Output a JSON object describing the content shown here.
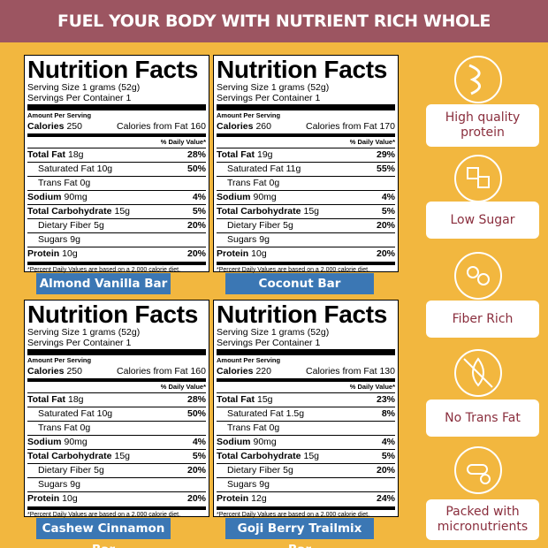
{
  "header": {
    "title": "FUEL YOUR BODY WITH NUTRIENT RICH WHOLE INGREDIENTS"
  },
  "labels": [
    {
      "name": "Almond Vanilla Bar",
      "title": "Nutrition Facts",
      "serving_size": "Serving Size 1 grams (52g)",
      "servings": "Servings Per Container 1",
      "amount_per_serving": "Amount Per Serving",
      "calories_label": "Calories",
      "calories": 250,
      "calories_fat": "Calories from Fat 160",
      "daily_value": "% Daily Value*",
      "rows": [
        {
          "nutrient": "Total Fat",
          "amount": "18g",
          "dv": "28%"
        },
        {
          "nutrient": "Saturated Fat",
          "amount": "10g",
          "dv": "50%"
        },
        {
          "nutrient": "Trans Fat",
          "amount": "0g"
        },
        {
          "nutrient": "Sodium",
          "amount": "90mg",
          "dv": "4%"
        },
        {
          "nutrient": "Total Carbohydrate",
          "amount": "15g",
          "dv": "5%"
        },
        {
          "nutrient": "Dietary Fiber",
          "amount": "5g",
          "dv": "20%"
        },
        {
          "nutrient": "Sugars",
          "amount": "9g"
        },
        {
          "nutrient": "Protein",
          "amount": "10g",
          "dv": "20%"
        }
      ],
      "footnote": "*Percent Daily Values are based on a 2,000 calorie diet."
    },
    {
      "name": "Coconut Bar",
      "title": "Nutrition Facts",
      "serving_size": "Serving Size 1 grams (52g)",
      "servings": "Servings Per Container 1",
      "amount_per_serving": "Amount Per Serving",
      "calories_label": "Calories",
      "calories": 260,
      "calories_fat": "Calories from Fat 170",
      "daily_value": "% Daily Value*",
      "rows": [
        {
          "nutrient": "Total Fat",
          "amount": "19g",
          "dv": "29%"
        },
        {
          "nutrient": "Saturated Fat",
          "amount": "11g",
          "dv": "55%"
        },
        {
          "nutrient": "Trans Fat",
          "amount": "0g"
        },
        {
          "nutrient": "Sodium",
          "amount": "90mg",
          "dv": "4%"
        },
        {
          "nutrient": "Total Carbohydrate",
          "amount": "15g",
          "dv": "5%"
        },
        {
          "nutrient": "Dietary Fiber",
          "amount": "5g",
          "dv": "20%"
        },
        {
          "nutrient": "Sugars",
          "amount": "9g"
        },
        {
          "nutrient": "Protein",
          "amount": "10g",
          "dv": "20%"
        }
      ],
      "footnote": "*Percent Daily Values are based on a 2,000 calorie diet."
    },
    {
      "name": "Cashew Cinnamon Bar",
      "title": "Nutrition Facts",
      "serving_size": "Serving Size 1 grams (52g)",
      "servings": "Servings Per Container 1",
      "amount_per_serving": "Amount Per Serving",
      "calories_label": "Calories",
      "calories": 250,
      "calories_fat": "Calories from Fat 160",
      "daily_value": "% Daily Value*",
      "rows": [
        {
          "nutrient": "Total Fat",
          "amount": "18g",
          "dv": "28%"
        },
        {
          "nutrient": "Saturated Fat",
          "amount": "10g",
          "dv": "50%"
        },
        {
          "nutrient": "Trans Fat",
          "amount": "0g"
        },
        {
          "nutrient": "Sodium",
          "amount": "90mg",
          "dv": "4%"
        },
        {
          "nutrient": "Total Carbohydrate",
          "amount": "15g",
          "dv": "5%"
        },
        {
          "nutrient": "Dietary Fiber",
          "amount": "5g",
          "dv": "20%"
        },
        {
          "nutrient": "Sugars",
          "amount": "9g"
        },
        {
          "nutrient": "Protein",
          "amount": "10g",
          "dv": "20%"
        }
      ],
      "footnote": "*Percent Daily Values are based on a 2,000 calorie diet."
    },
    {
      "name": "Goji Berry Trailmix Bar",
      "title": "Nutrition Facts",
      "serving_size": "Serving Size 1 grams (52g)",
      "servings": "Servings Per Container 1",
      "amount_per_serving": "Amount Per Serving",
      "calories_label": "Calories",
      "calories": 220,
      "calories_fat": "Calories from Fat 130",
      "daily_value": "% Daily Value*",
      "rows": [
        {
          "nutrient": "Total Fat",
          "amount": "15g",
          "dv": "23%"
        },
        {
          "nutrient": "Saturated Fat",
          "amount": "1.5g",
          "dv": "8%"
        },
        {
          "nutrient": "Trans Fat",
          "amount": "0g"
        },
        {
          "nutrient": "Sodium",
          "amount": "90mg",
          "dv": "4%"
        },
        {
          "nutrient": "Total Carbohydrate",
          "amount": "15g",
          "dv": "5%"
        },
        {
          "nutrient": "Dietary Fiber",
          "amount": "5g",
          "dv": "20%"
        },
        {
          "nutrient": "Sugars",
          "amount": "9g"
        },
        {
          "nutrient": "Protein",
          "amount": "12g",
          "dv": "24%"
        }
      ],
      "footnote": "*Percent Daily Values are based on a 2,000 calorie diet."
    }
  ],
  "features": [
    "High quality protein",
    "Low Sugar",
    "Fiber Rich",
    "No Trans Fat",
    "Packed with micronutrients"
  ]
}
